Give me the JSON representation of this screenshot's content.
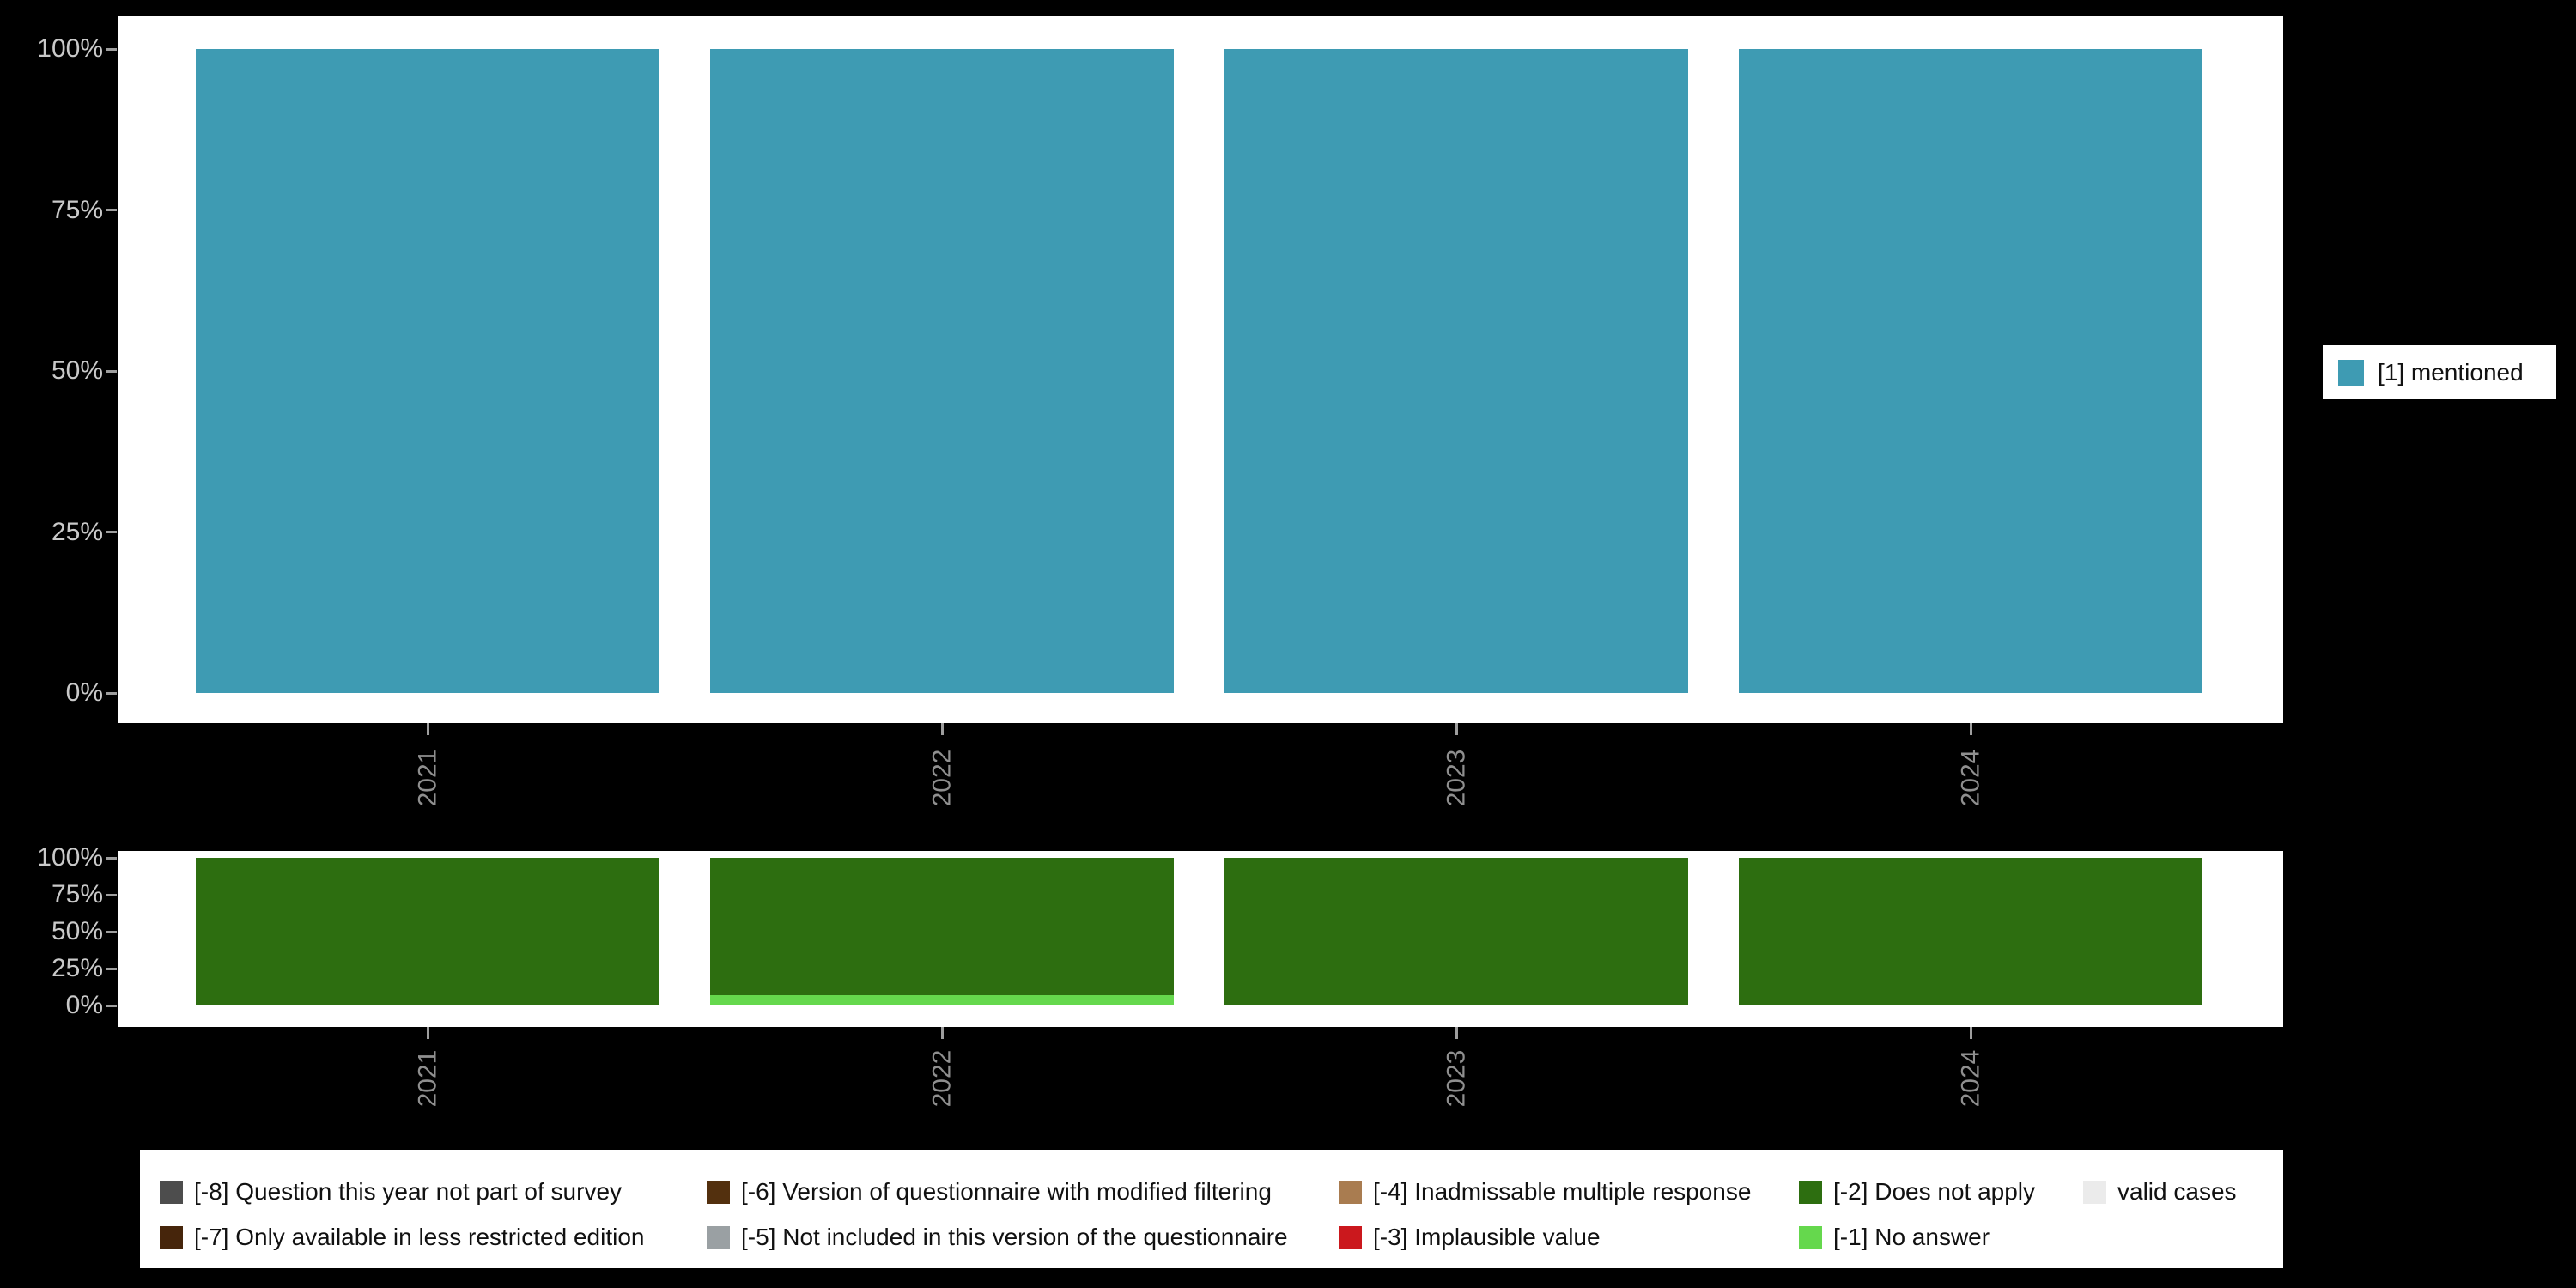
{
  "chart_data": [
    {
      "type": "bar",
      "title": "",
      "categories": [
        "2021",
        "2022",
        "2023",
        "2024"
      ],
      "series": [
        {
          "name": "[1] mentioned",
          "color": "#3e9bb3",
          "values": [
            100,
            100,
            100,
            100
          ]
        }
      ],
      "stacked": true,
      "bar_unit": "percent",
      "ylim": [
        0,
        100
      ],
      "y_ticks": [
        "0%",
        "25%",
        "50%",
        "75%",
        "100%"
      ],
      "grid": false,
      "legend_position": "right"
    },
    {
      "type": "bar",
      "title": "",
      "categories": [
        "2021",
        "2022",
        "2023",
        "2024"
      ],
      "series": [
        {
          "name": "[-1] No answer",
          "color": "#65d84d",
          "values": [
            0,
            7,
            0,
            0
          ]
        },
        {
          "name": "[-2] Does not apply",
          "color": "#2d6e10",
          "values": [
            100,
            93,
            100,
            100
          ]
        }
      ],
      "stacked": true,
      "stack_order": "bottom-to-top",
      "bar_unit": "percent",
      "ylim": [
        0,
        100
      ],
      "y_ticks": [
        "0%",
        "25%",
        "50%",
        "75%",
        "100%"
      ],
      "grid": false,
      "legend_position": "bottom"
    }
  ],
  "main_legend": {
    "label": "[1] mentioned",
    "color": "#3e9bb3"
  },
  "missing_legend": {
    "rows": [
      [
        {
          "label": "[-8] Question this year not part of survey",
          "color": "#4d4d4d"
        },
        {
          "label": "[-6] Version of questionnaire with modified filtering",
          "color": "#53300e"
        },
        {
          "label": "[-4] Inadmissable multiple response",
          "color": "#a97c50"
        },
        {
          "label": "[-2] Does not apply",
          "color": "#2d6e10"
        },
        {
          "label": "valid cases",
          "color": "#ebebeb"
        }
      ],
      [
        {
          "label": "[-7] Only available in less restricted edition",
          "color": "#46250b"
        },
        {
          "label": "[-5] Not included in this version of the questionnaire",
          "color": "#9aa0a3"
        },
        {
          "label": "[-3] Implausible value",
          "color": "#cb181d"
        },
        {
          "label": "[-1] No answer",
          "color": "#65d84d"
        }
      ]
    ]
  },
  "colors": {
    "background": "#000000",
    "panel": "#ffffff",
    "y_axis_text": "#c9c9c9",
    "x_axis_text": "#8f8f8f"
  }
}
